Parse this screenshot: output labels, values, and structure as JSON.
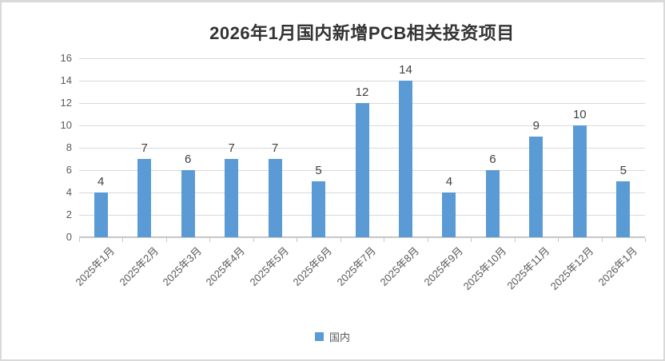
{
  "chart_data": {
    "type": "bar",
    "title": "2026年1月国内新增PCB相关投资项目",
    "categories": [
      "2025年1月",
      "2025年2月",
      "2025年3月",
      "2025年4月",
      "2025年5月",
      "2025年6月",
      "2025年7月",
      "2025年8月",
      "2025年9月",
      "2025年10月",
      "2025年11月",
      "2025年12月",
      "2026年1月"
    ],
    "series": [
      {
        "name": "国内",
        "values": [
          4,
          7,
          6,
          7,
          7,
          5,
          12,
          14,
          4,
          6,
          9,
          10,
          5
        ]
      }
    ],
    "ylim": [
      0,
      16
    ],
    "ytick_step": 2,
    "yticks": [
      0,
      2,
      4,
      6,
      8,
      10,
      12,
      14,
      16
    ],
    "grid": true,
    "data_labels": true,
    "legend_position": "bottom",
    "xlabel": "",
    "ylabel": ""
  },
  "legend": {
    "label": "国内"
  },
  "colors": {
    "bar": "#5b9bd5",
    "gridline": "#d9d9d9",
    "axis_line": "#c6c6c6",
    "tick_label": "#595959",
    "data_label": "#404040",
    "title": "#333333",
    "frame_border": "#d9d9d9"
  }
}
